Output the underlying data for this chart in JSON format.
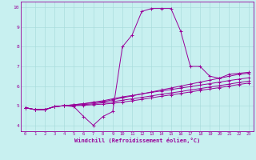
{
  "background_color": "#c8f0f0",
  "line_color": "#990099",
  "grid_color": "#aadddd",
  "xlabel": "Windchill (Refroidissement éolien,°C)",
  "xlabel_color": "#990099",
  "tick_color": "#990099",
  "xlim": [
    -0.5,
    23.5
  ],
  "ylim": [
    3.7,
    10.3
  ],
  "xticks": [
    0,
    1,
    2,
    3,
    4,
    5,
    6,
    7,
    8,
    9,
    10,
    11,
    12,
    13,
    14,
    15,
    16,
    17,
    18,
    19,
    20,
    21,
    22,
    23
  ],
  "yticks": [
    4,
    5,
    6,
    7,
    8,
    9,
    10
  ],
  "curves": [
    [
      4.9,
      4.8,
      4.8,
      4.95,
      5.0,
      4.95,
      4.45,
      4.0,
      4.45,
      4.7,
      8.0,
      8.6,
      9.8,
      9.95,
      9.95,
      9.95,
      8.8,
      7.0,
      7.0,
      6.5,
      6.4,
      6.6,
      6.65,
      6.7
    ],
    [
      4.9,
      4.8,
      4.8,
      4.95,
      5.0,
      5.05,
      5.1,
      5.15,
      5.2,
      5.3,
      5.4,
      5.5,
      5.6,
      5.7,
      5.8,
      5.9,
      6.0,
      6.1,
      6.2,
      6.3,
      6.4,
      6.5,
      6.6,
      6.65
    ],
    [
      4.9,
      4.8,
      4.8,
      4.95,
      5.0,
      5.05,
      5.1,
      5.18,
      5.25,
      5.35,
      5.45,
      5.52,
      5.6,
      5.68,
      5.75,
      5.82,
      5.9,
      5.97,
      6.05,
      6.12,
      6.2,
      6.28,
      6.35,
      6.42
    ],
    [
      4.9,
      4.8,
      4.8,
      4.95,
      5.0,
      5.02,
      5.05,
      5.1,
      5.15,
      5.2,
      5.28,
      5.35,
      5.42,
      5.5,
      5.58,
      5.65,
      5.72,
      5.8,
      5.87,
      5.95,
      6.02,
      6.1,
      6.18,
      6.25
    ],
    [
      4.9,
      4.8,
      4.8,
      4.95,
      5.0,
      5.0,
      5.02,
      5.05,
      5.08,
      5.12,
      5.18,
      5.25,
      5.32,
      5.4,
      5.48,
      5.55,
      5.62,
      5.7,
      5.78,
      5.85,
      5.92,
      6.0,
      6.08,
      6.15
    ]
  ]
}
